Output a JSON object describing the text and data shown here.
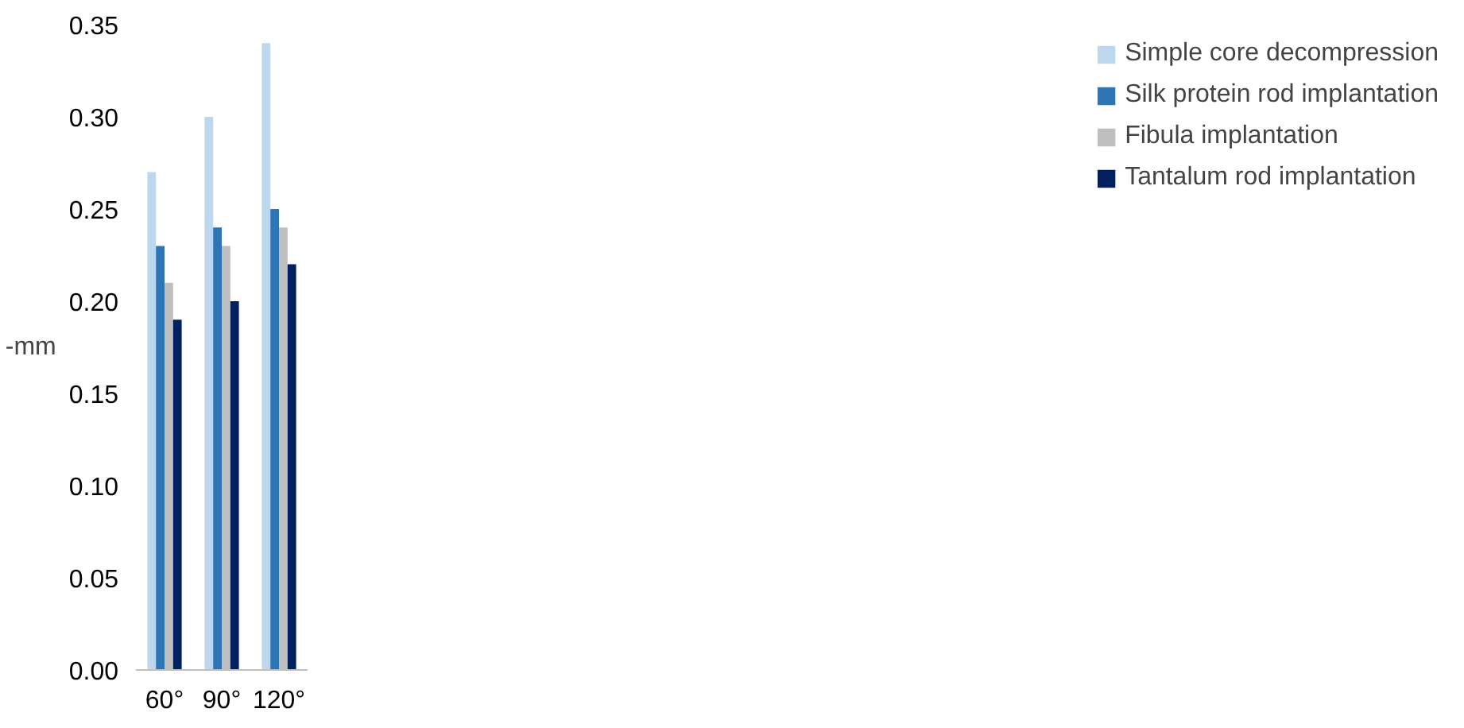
{
  "chart_data": {
    "type": "bar",
    "ylabel": "-mm",
    "categories": [
      "60°",
      "90°",
      "120°"
    ],
    "series": [
      {
        "name": "Simple core decompression",
        "color": "#bdd7ee",
        "values": [
          0.27,
          0.3,
          0.34
        ]
      },
      {
        "name": "Silk protein rod implantation",
        "color": "#2e75b6",
        "values": [
          0.23,
          0.24,
          0.25
        ]
      },
      {
        "name": "Fibula implantation",
        "color": "#bfbfbf",
        "values": [
          0.21,
          0.23,
          0.24
        ]
      },
      {
        "name": "Tantalum rod implantation",
        "color": "#002060",
        "values": [
          0.19,
          0.2,
          0.22
        ]
      }
    ],
    "ylim": [
      0,
      0.35
    ],
    "yticks": [
      {
        "value": 0,
        "label": "0.00"
      },
      {
        "value": 0.05,
        "label": "0.05"
      },
      {
        "value": 0.1,
        "label": "0.10"
      },
      {
        "value": 0.15,
        "label": "0.15"
      },
      {
        "value": 0.2,
        "label": "0.20"
      },
      {
        "value": 0.25,
        "label": "0.25"
      },
      {
        "value": 0.3,
        "label": "0.30"
      },
      {
        "value": 0.35,
        "label": "0.35"
      }
    ],
    "grid": false,
    "legend": "right"
  }
}
